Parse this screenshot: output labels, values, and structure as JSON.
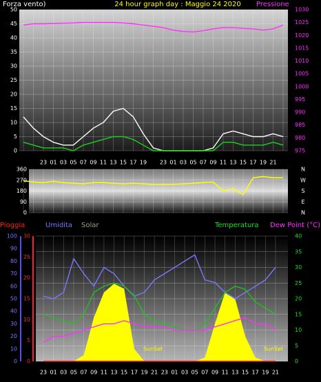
{
  "chart_data": [
    {
      "type": "line",
      "title": "24 hour graph day : Maggio 24 2020",
      "ylabel": "Forza vento)",
      "y2label": "Pressione",
      "categories": [
        null,
        null,
        "23",
        "01",
        "03",
        "05",
        "07",
        "09",
        "11",
        "13",
        "15",
        "17",
        "19",
        null,
        "23",
        "01",
        "03",
        "05",
        "07",
        "09",
        "11",
        "13",
        "15",
        "17",
        "19",
        "21",
        null
      ],
      "ylim": [
        0,
        50
      ],
      "yticks": [
        0,
        5,
        10,
        15,
        20,
        25,
        30,
        35,
        40,
        45,
        50
      ],
      "y2lim": [
        975,
        1030
      ],
      "y2ticks": [
        975,
        980,
        985,
        990,
        995,
        1000,
        1005,
        1010,
        1015,
        1020,
        1025,
        1030
      ],
      "y3lim": [
        0,
        360
      ],
      "y3ticks": [
        0,
        90,
        180,
        270,
        360
      ],
      "compass": [
        {
          "value": 0,
          "label": "N"
        },
        {
          "value": 90,
          "label": "E"
        },
        {
          "value": 180,
          "label": "S"
        },
        {
          "value": 270,
          "label": "W"
        },
        {
          "value": 360,
          "label": "N"
        }
      ],
      "grid": true,
      "series": [
        {
          "color": "#ffffff",
          "values": [
            12,
            8,
            5,
            3,
            2,
            2,
            5,
            8,
            10,
            14,
            15,
            12,
            6,
            1,
            0,
            0,
            0,
            0,
            0,
            1,
            6,
            7,
            6,
            5,
            5,
            6,
            5
          ]
        },
        {
          "color": "#20d020",
          "values": [
            3,
            2,
            1,
            1,
            1,
            0,
            2,
            3,
            4,
            5,
            5,
            4,
            2,
            0,
            0,
            0,
            0,
            0,
            0,
            0,
            3,
            3,
            2,
            2,
            2,
            3,
            2
          ]
        },
        {
          "color": "#ff30ff",
          "axis": "y2",
          "values": [
            1024,
            1024.5,
            1024.5,
            1024.6,
            1024.7,
            1024.8,
            1025,
            1025,
            1025,
            1025,
            1024.8,
            1024.5,
            1024,
            1023.5,
            1023,
            1022,
            1021.5,
            1021.3,
            1021.8,
            1022.5,
            1023,
            1023,
            1022.7,
            1022.5,
            1022,
            1022.5,
            1024
          ]
        },
        {
          "color": "#ffff00",
          "axis": "y3",
          "values": [
            265,
            255,
            250,
            260,
            250,
            245,
            240,
            250,
            250,
            245,
            240,
            245,
            240,
            235,
            235,
            235,
            240,
            245,
            250,
            255,
            180,
            200,
            150,
            290,
            300,
            290,
            290
          ]
        }
      ]
    },
    {
      "type": "line",
      "categories": [
        "23",
        "01",
        "03",
        "05",
        "07",
        "09",
        "11",
        "13",
        "15",
        "17",
        "19",
        "21",
        "23",
        "01",
        "03",
        "05",
        "07",
        "09",
        "11",
        "13",
        "15",
        "17",
        "19",
        "21"
      ],
      "ylim": [
        0,
        100
      ],
      "yticks": [
        0,
        10,
        20,
        30,
        40,
        50,
        60,
        70,
        80,
        90,
        100
      ],
      "raintlim": [
        0,
        30
      ],
      "rainticks": [
        0,
        5,
        10,
        15,
        20,
        25,
        30
      ],
      "y2lim": [
        0,
        40
      ],
      "y2ticks": [
        0,
        5,
        10,
        15,
        20,
        25,
        30,
        35,
        40
      ],
      "annotations": [
        "SunSet",
        "SunSet"
      ],
      "series": [
        {
          "name": "Solar",
          "color": "#ffff00",
          "fill": true,
          "values": [
            0,
            0,
            0,
            0,
            5,
            35,
            55,
            62,
            58,
            10,
            0,
            0,
            0,
            0,
            0,
            0,
            3,
            30,
            55,
            50,
            20,
            3,
            0,
            0
          ]
        },
        {
          "name": "Pioggia",
          "color": "#ff0000",
          "axis": "rain",
          "values": [
            0,
            0,
            0,
            0,
            0,
            0,
            0,
            0,
            0,
            0,
            0,
            0,
            0,
            0,
            0,
            0,
            0,
            0,
            0,
            0,
            0,
            0,
            0,
            0
          ]
        },
        {
          "name": "Umidita",
          "color": "#7878ff",
          "values": [
            52,
            50,
            55,
            82,
            70,
            60,
            75,
            70,
            60,
            52,
            55,
            65,
            70,
            75,
            80,
            85,
            65,
            63,
            55,
            50,
            55,
            60,
            65,
            75
          ]
        },
        {
          "name": "Temperatura",
          "color": "#20c020",
          "axis": "y2",
          "values": [
            15,
            14,
            13,
            12,
            15,
            22,
            24,
            25,
            24,
            21,
            15,
            13,
            12,
            11,
            10,
            10,
            12,
            17,
            22,
            24,
            23,
            19,
            17,
            15
          ]
        },
        {
          "name": "Dew Point (°C)",
          "color": "#ff30ff",
          "axis": "y2",
          "values": [
            6,
            8,
            8,
            9,
            10,
            11,
            12,
            12,
            13,
            12,
            11,
            11,
            11,
            10,
            10,
            10,
            10,
            11,
            12,
            13,
            14,
            12,
            12,
            10
          ]
        }
      ]
    }
  ]
}
